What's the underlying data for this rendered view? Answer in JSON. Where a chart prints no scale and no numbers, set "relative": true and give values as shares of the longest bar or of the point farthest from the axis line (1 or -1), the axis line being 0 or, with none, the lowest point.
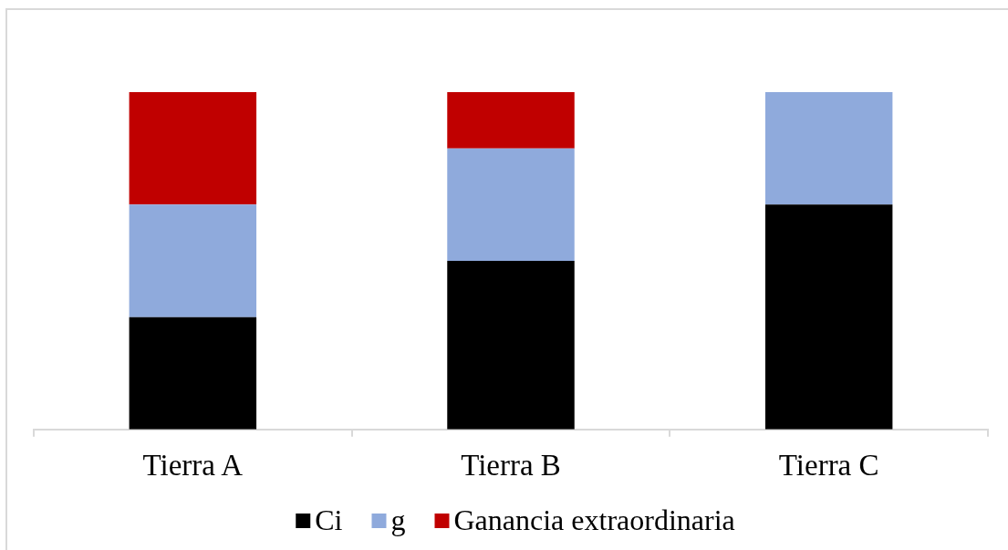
{
  "chart_data": {
    "type": "bar",
    "stacked": true,
    "relative": true,
    "legend": "bottom",
    "categories": [
      "Tierra A",
      "Tierra B",
      "Tierra C"
    ],
    "series": [
      {
        "name": "Ci",
        "color": "#000000",
        "values": [
          0.333,
          0.5,
          0.667
        ]
      },
      {
        "name": "g",
        "color": "#8faadc",
        "values": [
          0.334,
          0.333,
          0.333
        ]
      },
      {
        "name": "Ganancia extraordinaria",
        "color": "#c00000",
        "values": [
          0.333,
          0.167,
          null
        ]
      }
    ]
  }
}
